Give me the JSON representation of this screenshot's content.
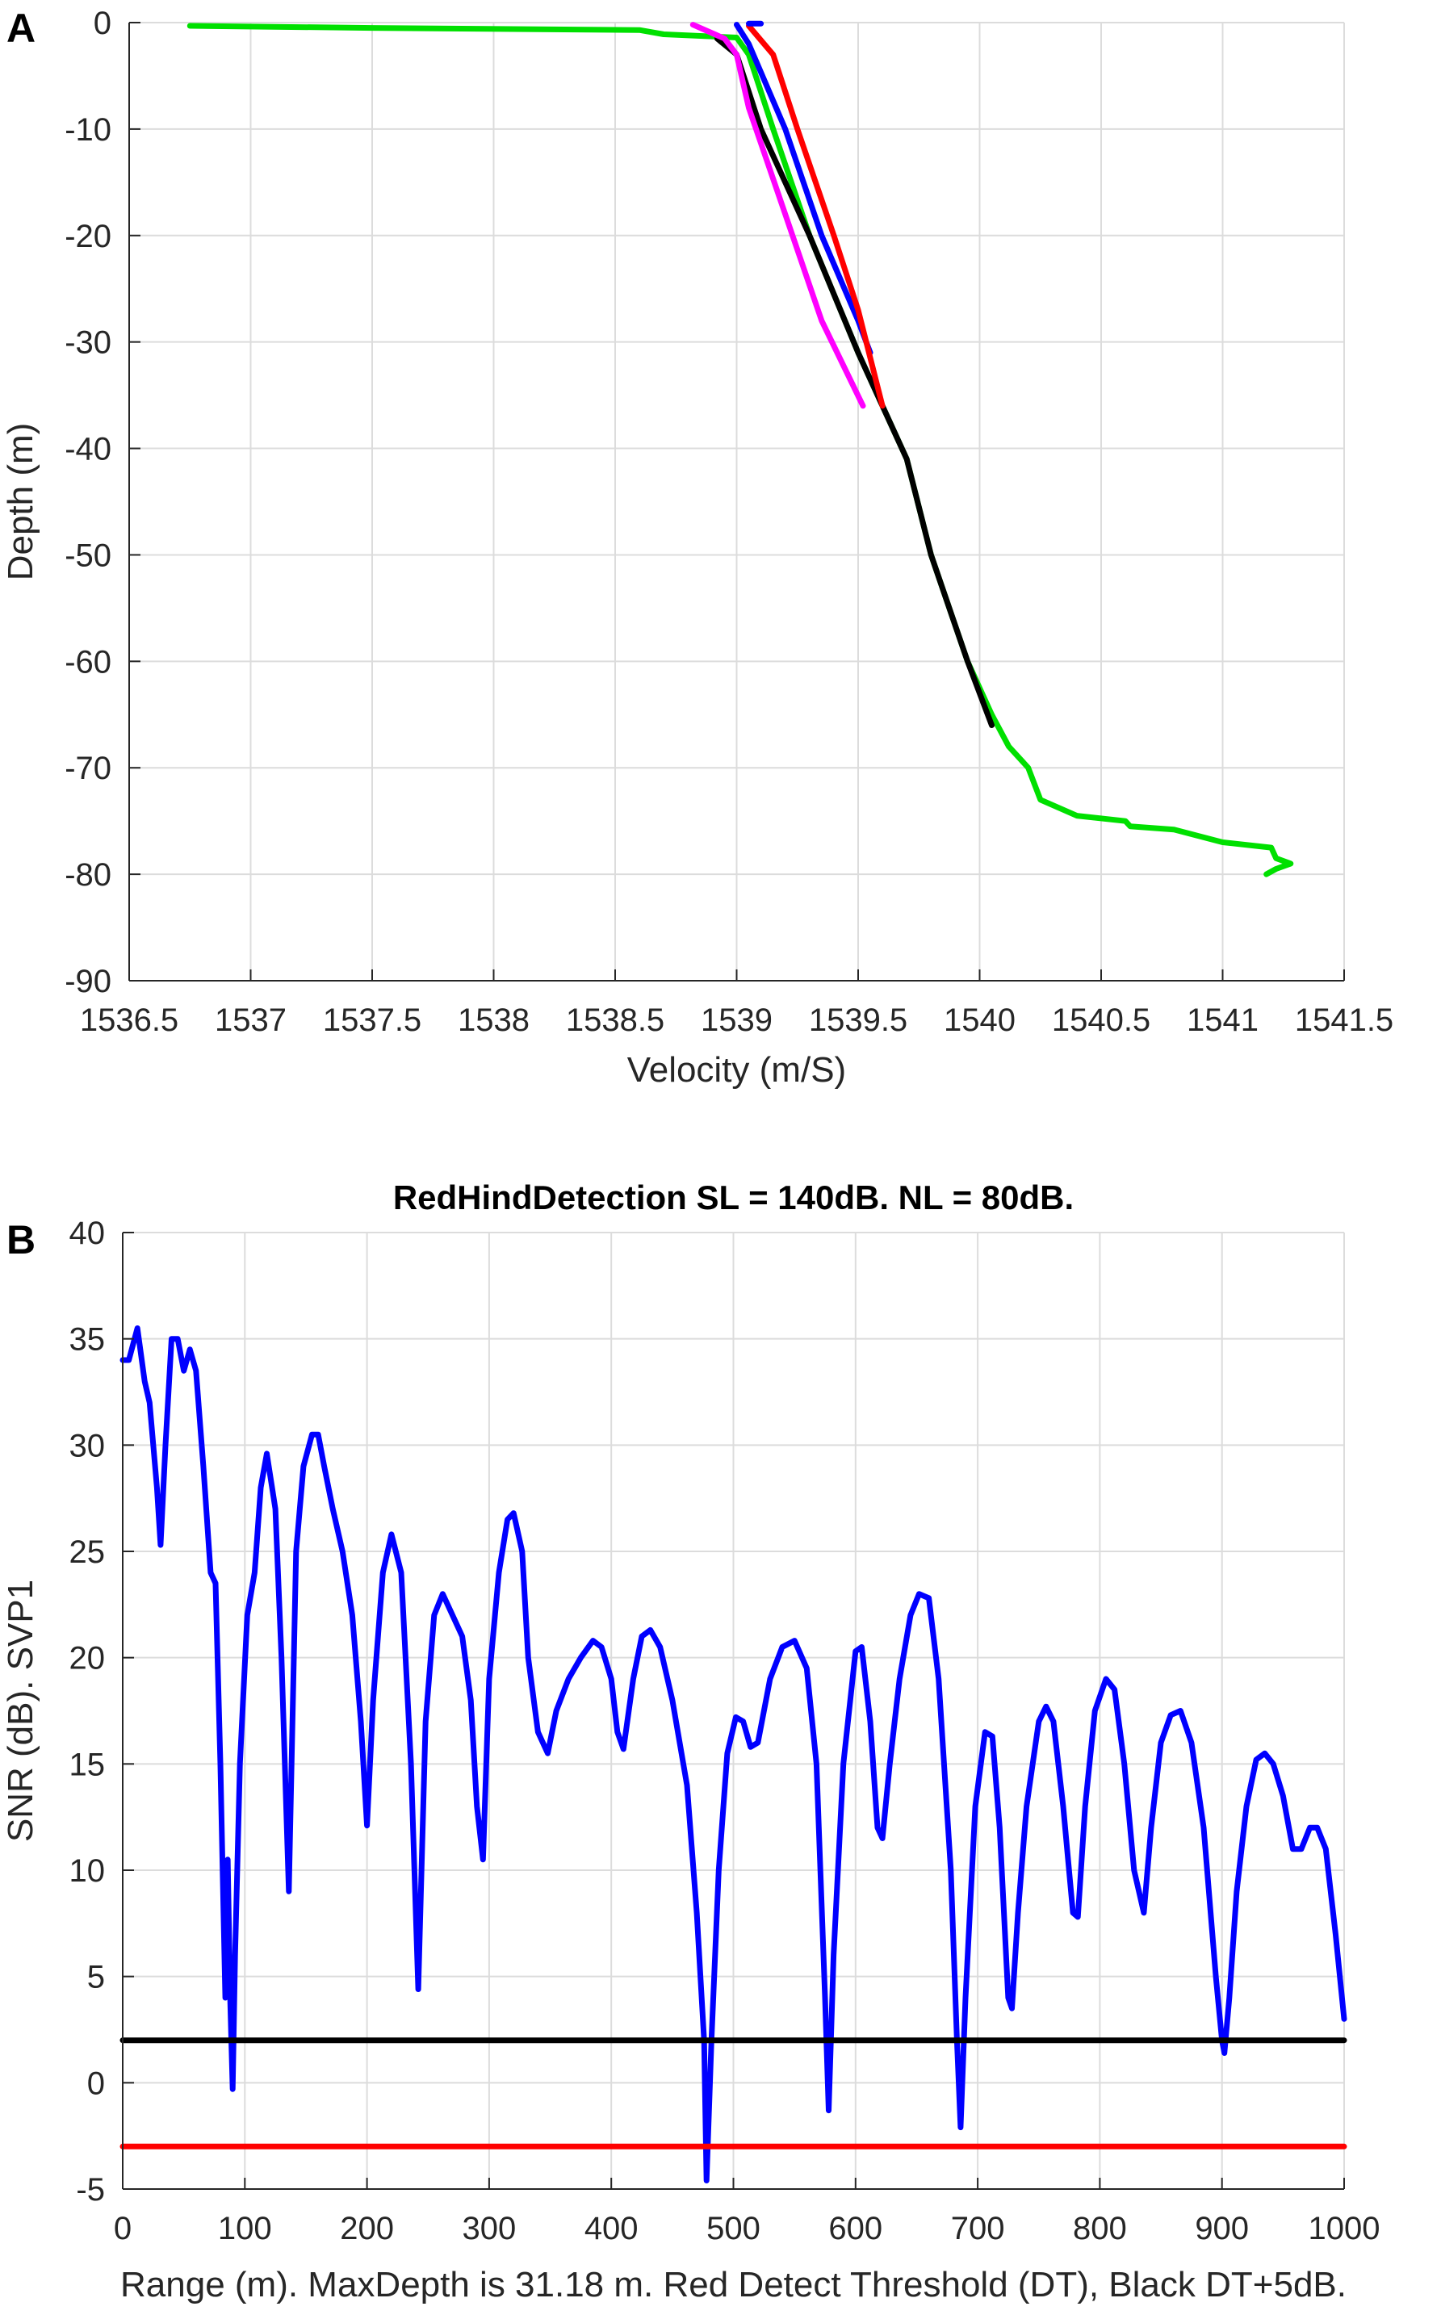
{
  "chart_data": [
    {
      "type": "line",
      "panel_label": "A",
      "title": "",
      "xlabel": "Velocity (m/S)",
      "ylabel": "Depth (m)",
      "xlim": [
        1536.5,
        1541.5
      ],
      "ylim": [
        -90,
        0
      ],
      "xticks": [
        "1536.5",
        "1537",
        "1537.5",
        "1538",
        "1538.5",
        "1539",
        "1539.5",
        "1540",
        "1540.5",
        "1541",
        "1541.5"
      ],
      "yticks": [
        "0",
        "-10",
        "-20",
        "-30",
        "-40",
        "-50",
        "-60",
        "-70",
        "-80",
        "-90"
      ],
      "grid": true,
      "series": [
        {
          "color": "#00e000",
          "points": [
            [
              1536.75,
              -0.3
            ],
            [
              1537.5,
              -0.5
            ],
            [
              1538.6,
              -0.7
            ],
            [
              1538.7,
              -1.1
            ],
            [
              1539.0,
              -1.4
            ],
            [
              1539.05,
              -3
            ],
            [
              1539.15,
              -10
            ],
            [
              1539.3,
              -20
            ],
            [
              1539.5,
              -31
            ],
            [
              1539.6,
              -36
            ],
            [
              1539.7,
              -41
            ],
            [
              1539.8,
              -50
            ],
            [
              1539.95,
              -60
            ],
            [
              1540.05,
              -65
            ],
            [
              1540.12,
              -68
            ],
            [
              1540.2,
              -70
            ],
            [
              1540.25,
              -73
            ],
            [
              1540.4,
              -74.5
            ],
            [
              1540.6,
              -75
            ],
            [
              1540.62,
              -75.5
            ],
            [
              1540.8,
              -75.8
            ],
            [
              1541.0,
              -77
            ],
            [
              1541.2,
              -77.5
            ],
            [
              1541.22,
              -78.5
            ],
            [
              1541.28,
              -79
            ],
            [
              1541.22,
              -79.5
            ],
            [
              1541.18,
              -80
            ]
          ]
        },
        {
          "color": "#000000",
          "points": [
            [
              1538.92,
              -1.5
            ],
            [
              1539.0,
              -3
            ],
            [
              1539.1,
              -10
            ],
            [
              1539.3,
              -20
            ],
            [
              1539.5,
              -31
            ],
            [
              1539.6,
              -36
            ],
            [
              1539.7,
              -41
            ],
            [
              1539.8,
              -50
            ],
            [
              1539.95,
              -60
            ],
            [
              1540.05,
              -66
            ]
          ]
        },
        {
          "color": "#0000ff",
          "points": [
            [
              1539.0,
              -0.2
            ],
            [
              1539.05,
              -2
            ],
            [
              1539.2,
              -10
            ],
            [
              1539.35,
              -20
            ],
            [
              1539.5,
              -28
            ],
            [
              1539.55,
              -31
            ]
          ]
        },
        {
          "color": "#ff0000",
          "points": [
            [
              1539.05,
              -0.3
            ],
            [
              1539.15,
              -3
            ],
            [
              1539.25,
              -10
            ],
            [
              1539.4,
              -20
            ],
            [
              1539.5,
              -27
            ],
            [
              1539.6,
              -36
            ]
          ]
        },
        {
          "color": "#ff00ff",
          "points": [
            [
              1538.82,
              -0.2
            ],
            [
              1538.95,
              -1.5
            ],
            [
              1539.0,
              -3
            ],
            [
              1539.05,
              -8
            ],
            [
              1539.2,
              -18
            ],
            [
              1539.35,
              -28
            ],
            [
              1539.52,
              -36
            ]
          ]
        },
        {
          "color": "#0000ff",
          "points": [
            [
              1539.05,
              -0.1
            ],
            [
              1539.1,
              -0.1
            ]
          ]
        }
      ]
    },
    {
      "type": "line",
      "panel_label": "B",
      "title": "RedHindDetection SL = 140dB. NL = 80dB.",
      "xlabel": "Range (m). MaxDepth is 31.18 m. Red Detect Threshold (DT), Black DT+5dB.",
      "ylabel": "SNR (dB). SVP1",
      "xlim": [
        0,
        1000
      ],
      "ylim": [
        -5,
        40
      ],
      "xticks": [
        "0",
        "100",
        "200",
        "300",
        "400",
        "500",
        "600",
        "700",
        "800",
        "900",
        "1000"
      ],
      "yticks": [
        "40",
        "35",
        "30",
        "25",
        "20",
        "15",
        "10",
        "5",
        "0",
        "-5"
      ],
      "grid": true,
      "series": [
        {
          "color": "#0000ff",
          "points": [
            [
              0,
              34
            ],
            [
              5,
              34
            ],
            [
              12,
              35.5
            ],
            [
              18,
              33
            ],
            [
              22,
              32
            ],
            [
              28,
              28
            ],
            [
              31,
              25.3
            ],
            [
              35,
              30
            ],
            [
              40,
              35
            ],
            [
              45,
              35
            ],
            [
              50,
              33.5
            ],
            [
              55,
              34.5
            ],
            [
              60,
              33.5
            ],
            [
              66,
              29
            ],
            [
              72,
              24
            ],
            [
              76,
              23.5
            ],
            [
              80,
              15
            ],
            [
              84,
              4
            ],
            [
              86,
              10.5
            ],
            [
              88,
              4
            ],
            [
              90,
              -0.3
            ],
            [
              92,
              6
            ],
            [
              96,
              15
            ],
            [
              102,
              22
            ],
            [
              108,
              24
            ],
            [
              113,
              28
            ],
            [
              118,
              29.6
            ],
            [
              125,
              27
            ],
            [
              130,
              20
            ],
            [
              136,
              9
            ],
            [
              142,
              25
            ],
            [
              148,
              29
            ],
            [
              155,
              30.5
            ],
            [
              160,
              30.5
            ],
            [
              165,
              29
            ],
            [
              172,
              27
            ],
            [
              180,
              25
            ],
            [
              188,
              22
            ],
            [
              195,
              17
            ],
            [
              200,
              12.1
            ],
            [
              205,
              18
            ],
            [
              213,
              24
            ],
            [
              220,
              25.8
            ],
            [
              228,
              24
            ],
            [
              236,
              15
            ],
            [
              242,
              4.4
            ],
            [
              248,
              17
            ],
            [
              255,
              22
            ],
            [
              262,
              23
            ],
            [
              270,
              22
            ],
            [
              278,
              21
            ],
            [
              285,
              18
            ],
            [
              290,
              13
            ],
            [
              295,
              10.5
            ],
            [
              300,
              19
            ],
            [
              308,
              24
            ],
            [
              315,
              26.5
            ],
            [
              320,
              26.8
            ],
            [
              327,
              25
            ],
            [
              332,
              20
            ],
            [
              340,
              16.5
            ],
            [
              348,
              15.5
            ],
            [
              355,
              17.5
            ],
            [
              365,
              19
            ],
            [
              375,
              20
            ],
            [
              385,
              20.8
            ],
            [
              392,
              20.5
            ],
            [
              400,
              19
            ],
            [
              405,
              16.5
            ],
            [
              410,
              15.7
            ],
            [
              418,
              19
            ],
            [
              425,
              21
            ],
            [
              432,
              21.3
            ],
            [
              440,
              20.5
            ],
            [
              450,
              18
            ],
            [
              462,
              14
            ],
            [
              470,
              8
            ],
            [
              476,
              2
            ],
            [
              478,
              -4.6
            ],
            [
              482,
              2
            ],
            [
              488,
              10
            ],
            [
              495,
              15.5
            ],
            [
              502,
              17.2
            ],
            [
              508,
              17
            ],
            [
              514,
              15.8
            ],
            [
              520,
              16
            ],
            [
              530,
              19
            ],
            [
              540,
              20.5
            ],
            [
              550,
              20.8
            ],
            [
              560,
              19.5
            ],
            [
              568,
              15
            ],
            [
              575,
              4
            ],
            [
              578,
              -1.3
            ],
            [
              582,
              6
            ],
            [
              590,
              15
            ],
            [
              600,
              20.3
            ],
            [
              605,
              20.5
            ],
            [
              612,
              17
            ],
            [
              618,
              12
            ],
            [
              622,
              11.5
            ],
            [
              628,
              15
            ],
            [
              636,
              19
            ],
            [
              645,
              22
            ],
            [
              652,
              23
            ],
            [
              660,
              22.8
            ],
            [
              668,
              19
            ],
            [
              678,
              10
            ],
            [
              683,
              2
            ],
            [
              686,
              -2.1
            ],
            [
              690,
              4
            ],
            [
              698,
              13
            ],
            [
              706,
              16.5
            ],
            [
              712,
              16.3
            ],
            [
              718,
              12
            ],
            [
              725,
              4
            ],
            [
              728,
              3.5
            ],
            [
              733,
              8
            ],
            [
              740,
              13
            ],
            [
              750,
              17
            ],
            [
              756,
              17.7
            ],
            [
              762,
              17
            ],
            [
              770,
              13
            ],
            [
              778,
              8
            ],
            [
              782,
              7.8
            ],
            [
              788,
              13
            ],
            [
              796,
              17.5
            ],
            [
              805,
              19
            ],
            [
              812,
              18.5
            ],
            [
              820,
              15
            ],
            [
              828,
              10
            ],
            [
              836,
              8
            ],
            [
              842,
              12
            ],
            [
              850,
              16
            ],
            [
              858,
              17.3
            ],
            [
              866,
              17.5
            ],
            [
              875,
              16
            ],
            [
              885,
              12
            ],
            [
              895,
              5
            ],
            [
              900,
              2
            ],
            [
              902,
              1.4
            ],
            [
              906,
              4
            ],
            [
              912,
              9
            ],
            [
              920,
              13
            ],
            [
              928,
              15.2
            ],
            [
              935,
              15.5
            ],
            [
              942,
              15
            ],
            [
              950,
              13.5
            ],
            [
              958,
              11
            ],
            [
              965,
              11
            ],
            [
              972,
              12
            ],
            [
              978,
              12
            ],
            [
              985,
              11
            ],
            [
              993,
              7
            ],
            [
              1000,
              3
            ]
          ]
        },
        {
          "color": "#000000",
          "points": [
            [
              0,
              2
            ],
            [
              1000,
              2
            ]
          ]
        },
        {
          "color": "#ff0000",
          "points": [
            [
              0,
              -3
            ],
            [
              1000,
              -3
            ]
          ]
        }
      ]
    }
  ]
}
